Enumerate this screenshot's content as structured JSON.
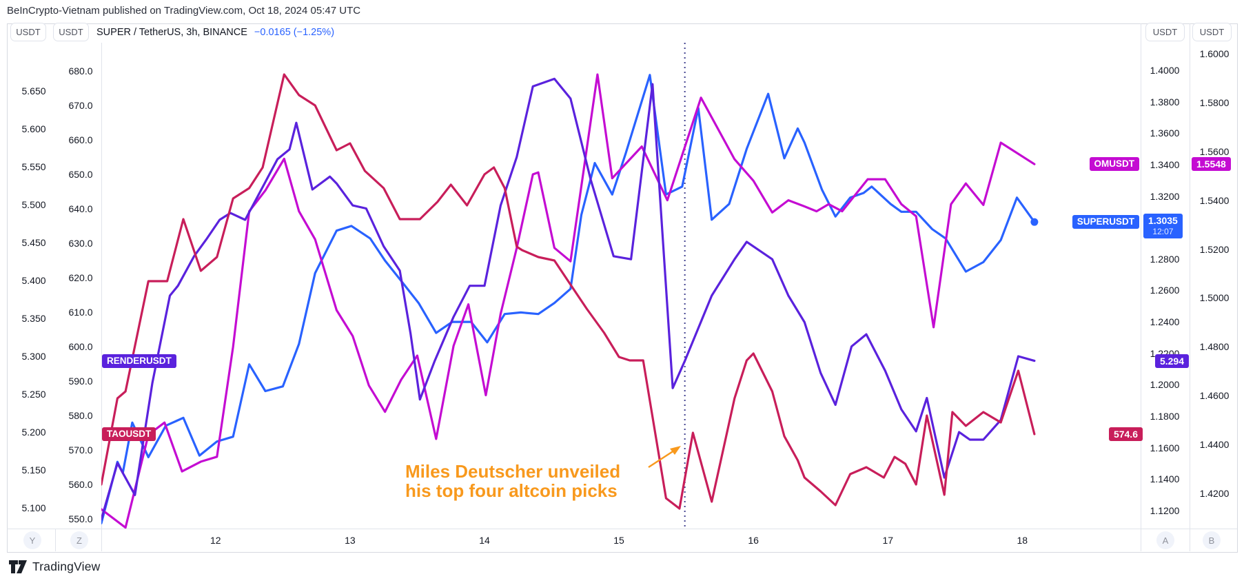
{
  "watermark": "BeInCrypto-Vietnam published on TradingView.com, Oct 18, 2024 05:47 UTC",
  "toolbar": {
    "left_scale_buttons": [
      "USDT",
      "USDT"
    ],
    "right_scale_buttons": [
      "USDT",
      "USDT"
    ],
    "title": "SUPER / TetherUS, 3h, BINANCE",
    "change": "−0.0165 (−1.25%)"
  },
  "axes": {
    "left_outer": {
      "unit": "USDT",
      "range": [
        5.0727,
        5.7136
      ],
      "ticks": [
        "5.650",
        "5.600",
        "5.550",
        "5.500",
        "5.450",
        "5.400",
        "5.350",
        "5.300",
        "5.250",
        "5.200",
        "5.150",
        "5.100"
      ]
    },
    "left_inner": {
      "unit": "USDT",
      "range": [
        547.2,
        688.2
      ],
      "ticks": [
        "680.0",
        "670.0",
        "660.0",
        "650.0",
        "640.0",
        "630.0",
        "620.0",
        "610.0",
        "600.0",
        "590.0",
        "580.0",
        "570.0",
        "560.0",
        "550.0"
      ]
    },
    "right_inner": {
      "unit": "USDT",
      "range": [
        1.1086,
        1.4175
      ],
      "ticks": [
        "1.4000",
        "1.3800",
        "1.3600",
        "1.3400",
        "1.3200",
        "1.3000",
        "1.2800",
        "1.2600",
        "1.2400",
        "1.2200",
        "1.2000",
        "1.1800",
        "1.1600",
        "1.1400",
        "1.1200"
      ]
    },
    "right_outer": {
      "unit": "USDT",
      "range": [
        1.4056,
        1.6045
      ],
      "ticks": [
        "1.6000",
        "1.5800",
        "1.5600",
        "1.5400",
        "1.5200",
        "1.5000",
        "1.4800",
        "1.4600",
        "1.4400",
        "1.4200"
      ]
    }
  },
  "time_axis": {
    "ticks": [
      12,
      13,
      14,
      15,
      16,
      17,
      18
    ]
  },
  "annotation": {
    "line1": "Miles Deutscher unveiled",
    "line2": "his top four altcoin picks",
    "color": "#f8991d"
  },
  "bottom_buttons": [
    "Y",
    "Z",
    "A",
    "B"
  ],
  "logo_text": "TradingView",
  "colors": {
    "super_blue": "#2962ff",
    "om_magenta": "#c40cd2",
    "render_indigo": "#5a22dd",
    "tao_crimson": "#c81e5a",
    "event_line": "#41418f",
    "annotation_orange": "#f8991d"
  },
  "chart_data": {
    "type": "line",
    "title": "SUPER / TetherUS, 3h, BINANCE with OMUSDT, RENDERUSDT, TAOUSDT overlays",
    "x_unit": "day of October 2024 (3h bars)",
    "x_range": [
      11.15,
      18.88
    ],
    "x_ticks": [
      12,
      13,
      14,
      15,
      16,
      17,
      18
    ],
    "grid": false,
    "event_marker": {
      "x": 15.49,
      "style": "vertical dotted",
      "label": "Miles Deutscher unveiled his top four altcoin picks"
    },
    "series": [
      {
        "name": "SUPERUSDT",
        "color": "#2962ff",
        "axis": "right_inner",
        "last_value": "1.3035",
        "countdown": "12:07",
        "end_dot": true,
        "points": [
          [
            11.15,
            1.112
          ],
          [
            11.27,
            1.151
          ],
          [
            11.31,
            1.144
          ],
          [
            11.38,
            1.176
          ],
          [
            11.5,
            1.154
          ],
          [
            11.63,
            1.174
          ],
          [
            11.76,
            1.179
          ],
          [
            11.88,
            1.155
          ],
          [
            12.01,
            1.164
          ],
          [
            12.13,
            1.167
          ],
          [
            12.25,
            1.213
          ],
          [
            12.37,
            1.196
          ],
          [
            12.5,
            1.199
          ],
          [
            12.62,
            1.226
          ],
          [
            12.74,
            1.271
          ],
          [
            12.9,
            1.298
          ],
          [
            13.01,
            1.301
          ],
          [
            13.15,
            1.293
          ],
          [
            13.26,
            1.279
          ],
          [
            13.39,
            1.265
          ],
          [
            13.51,
            1.252
          ],
          [
            13.64,
            1.233
          ],
          [
            13.76,
            1.24
          ],
          [
            13.9,
            1.24
          ],
          [
            14.02,
            1.227
          ],
          [
            14.15,
            1.245
          ],
          [
            14.27,
            1.246
          ],
          [
            14.4,
            1.245
          ],
          [
            14.52,
            1.252
          ],
          [
            14.64,
            1.261
          ],
          [
            14.72,
            1.308
          ],
          [
            14.82,
            1.341
          ],
          [
            14.95,
            1.321
          ],
          [
            15.05,
            1.347
          ],
          [
            15.23,
            1.397
          ],
          [
            15.35,
            1.321
          ],
          [
            15.47,
            1.326
          ],
          [
            15.59,
            1.376
          ],
          [
            15.69,
            1.305
          ],
          [
            15.82,
            1.315
          ],
          [
            15.95,
            1.35
          ],
          [
            16.11,
            1.385
          ],
          [
            16.23,
            1.344
          ],
          [
            16.33,
            1.363
          ],
          [
            16.38,
            1.354
          ],
          [
            16.51,
            1.324
          ],
          [
            16.61,
            1.307
          ],
          [
            16.72,
            1.319
          ],
          [
            16.82,
            1.322
          ],
          [
            16.88,
            1.326
          ],
          [
            17.02,
            1.315
          ],
          [
            17.1,
            1.31
          ],
          [
            17.21,
            1.31
          ],
          [
            17.33,
            1.299
          ],
          [
            17.43,
            1.293
          ],
          [
            17.58,
            1.272
          ],
          [
            17.71,
            1.278
          ],
          [
            17.84,
            1.292
          ],
          [
            17.96,
            1.319
          ],
          [
            18.09,
            1.3035
          ]
        ]
      },
      {
        "name": "OMUSDT",
        "color": "#c40cd2",
        "axis": "right_outer",
        "last_value": "1.5548",
        "end_dot": false,
        "points": [
          [
            11.15,
            1.4135
          ],
          [
            11.33,
            1.406
          ],
          [
            11.5,
            1.444
          ],
          [
            11.62,
            1.449
          ],
          [
            11.75,
            1.429
          ],
          [
            11.89,
            1.433
          ],
          [
            12.01,
            1.435
          ],
          [
            12.13,
            1.48
          ],
          [
            12.25,
            1.5355
          ],
          [
            12.37,
            1.544
          ],
          [
            12.51,
            1.557
          ],
          [
            12.62,
            1.5355
          ],
          [
            12.74,
            1.524
          ],
          [
            12.9,
            1.495
          ],
          [
            13.02,
            1.4844
          ],
          [
            13.14,
            1.4642
          ],
          [
            13.26,
            1.4534
          ],
          [
            13.38,
            1.4665
          ],
          [
            13.5,
            1.4764
          ],
          [
            13.64,
            1.4423
          ],
          [
            13.77,
            1.4804
          ],
          [
            13.88,
            1.4974
          ],
          [
            14.01,
            1.4602
          ],
          [
            14.12,
            1.4935
          ],
          [
            14.24,
            1.5205
          ],
          [
            14.36,
            1.5506
          ],
          [
            14.4,
            1.5514
          ],
          [
            14.52,
            1.5205
          ],
          [
            14.64,
            1.515
          ],
          [
            14.84,
            1.5915
          ],
          [
            14.95,
            1.549
          ],
          [
            15.17,
            1.562
          ],
          [
            15.36,
            1.54
          ],
          [
            15.61,
            1.582
          ],
          [
            15.86,
            1.5568
          ],
          [
            16.0,
            1.548
          ],
          [
            16.14,
            1.535
          ],
          [
            16.26,
            1.54
          ],
          [
            16.38,
            1.5375
          ],
          [
            16.47,
            1.5355
          ],
          [
            16.56,
            1.5384
          ],
          [
            16.66,
            1.5355
          ],
          [
            16.85,
            1.5486
          ],
          [
            16.98,
            1.5486
          ],
          [
            17.1,
            1.5384
          ],
          [
            17.21,
            1.5335
          ],
          [
            17.34,
            1.488
          ],
          [
            17.47,
            1.5384
          ],
          [
            17.58,
            1.5469
          ],
          [
            17.71,
            1.5381
          ],
          [
            17.84,
            1.5636
          ],
          [
            18.09,
            1.5548
          ]
        ]
      },
      {
        "name": "RENDERUSDT",
        "color": "#5a22dd",
        "axis": "left_outer",
        "last_value": "5.294",
        "end_dot": false,
        "points": [
          [
            11.15,
            5.085
          ],
          [
            11.27,
            5.159
          ],
          [
            11.4,
            5.117
          ],
          [
            11.53,
            5.265
          ],
          [
            11.66,
            5.38
          ],
          [
            11.72,
            5.393
          ],
          [
            11.84,
            5.432
          ],
          [
            11.93,
            5.454
          ],
          [
            12.03,
            5.48
          ],
          [
            12.11,
            5.489
          ],
          [
            12.22,
            5.48
          ],
          [
            12.34,
            5.52
          ],
          [
            12.46,
            5.56
          ],
          [
            12.55,
            5.573
          ],
          [
            12.6,
            5.608
          ],
          [
            12.72,
            5.52
          ],
          [
            12.85,
            5.537
          ],
          [
            12.9,
            5.528
          ],
          [
            13.02,
            5.499
          ],
          [
            13.12,
            5.495
          ],
          [
            13.25,
            5.445
          ],
          [
            13.37,
            5.413
          ],
          [
            13.45,
            5.33
          ],
          [
            13.52,
            5.243
          ],
          [
            13.63,
            5.294
          ],
          [
            13.77,
            5.352
          ],
          [
            13.89,
            5.393
          ],
          [
            14.0,
            5.393
          ],
          [
            14.12,
            5.499
          ],
          [
            14.24,
            5.563
          ],
          [
            14.36,
            5.656
          ],
          [
            14.52,
            5.666
          ],
          [
            14.64,
            5.64
          ],
          [
            14.79,
            5.533
          ],
          [
            14.96,
            5.432
          ],
          [
            15.09,
            5.428
          ],
          [
            15.25,
            5.659
          ],
          [
            15.4,
            5.258
          ],
          [
            15.49,
            5.294
          ],
          [
            15.69,
            5.38
          ],
          [
            15.86,
            5.428
          ],
          [
            15.95,
            5.451
          ],
          [
            16.14,
            5.428
          ],
          [
            16.26,
            5.38
          ],
          [
            16.38,
            5.345
          ],
          [
            16.5,
            5.278
          ],
          [
            16.61,
            5.236
          ],
          [
            16.73,
            5.313
          ],
          [
            16.84,
            5.329
          ],
          [
            16.98,
            5.281
          ],
          [
            17.1,
            5.23
          ],
          [
            17.21,
            5.201
          ],
          [
            17.29,
            5.245
          ],
          [
            17.42,
            5.14
          ],
          [
            17.53,
            5.2
          ],
          [
            17.61,
            5.19
          ],
          [
            17.71,
            5.19
          ],
          [
            17.84,
            5.216
          ],
          [
            17.97,
            5.3
          ],
          [
            18.09,
            5.294
          ]
        ]
      },
      {
        "name": "TAOUSDT",
        "color": "#c81e5a",
        "axis": "left_inner",
        "last_value": "574.6",
        "end_dot": false,
        "points": [
          [
            11.15,
            560
          ],
          [
            11.27,
            585
          ],
          [
            11.33,
            587
          ],
          [
            11.5,
            619
          ],
          [
            11.64,
            619
          ],
          [
            11.76,
            637
          ],
          [
            11.89,
            622
          ],
          [
            12.01,
            626
          ],
          [
            12.13,
            643
          ],
          [
            12.25,
            646
          ],
          [
            12.35,
            652
          ],
          [
            12.51,
            679
          ],
          [
            12.62,
            673
          ],
          [
            12.74,
            670
          ],
          [
            12.9,
            657
          ],
          [
            13.0,
            659
          ],
          [
            13.11,
            651
          ],
          [
            13.25,
            646
          ],
          [
            13.37,
            637
          ],
          [
            13.52,
            637
          ],
          [
            13.65,
            642
          ],
          [
            13.75,
            647
          ],
          [
            13.87,
            641
          ],
          [
            14.0,
            650
          ],
          [
            14.07,
            652
          ],
          [
            14.15,
            646
          ],
          [
            14.24,
            629
          ],
          [
            14.28,
            628
          ],
          [
            14.4,
            626
          ],
          [
            14.52,
            625
          ],
          [
            14.64,
            618
          ],
          [
            14.76,
            611
          ],
          [
            14.89,
            604
          ],
          [
            15.0,
            597
          ],
          [
            15.08,
            596
          ],
          [
            15.18,
            596
          ],
          [
            15.35,
            556
          ],
          [
            15.45,
            553
          ],
          [
            15.55,
            575
          ],
          [
            15.69,
            555
          ],
          [
            15.86,
            585
          ],
          [
            15.95,
            596
          ],
          [
            16.0,
            598
          ],
          [
            16.14,
            587
          ],
          [
            16.23,
            574
          ],
          [
            16.33,
            567
          ],
          [
            16.38,
            562
          ],
          [
            16.5,
            558
          ],
          [
            16.61,
            554
          ],
          [
            16.72,
            563
          ],
          [
            16.84,
            565
          ],
          [
            16.97,
            562
          ],
          [
            17.05,
            568
          ],
          [
            17.13,
            566
          ],
          [
            17.21,
            560
          ],
          [
            17.29,
            580
          ],
          [
            17.42,
            557
          ],
          [
            17.48,
            581
          ],
          [
            17.58,
            577
          ],
          [
            17.71,
            581
          ],
          [
            17.84,
            578
          ],
          [
            17.97,
            593
          ],
          [
            18.09,
            574.6
          ]
        ]
      }
    ]
  }
}
